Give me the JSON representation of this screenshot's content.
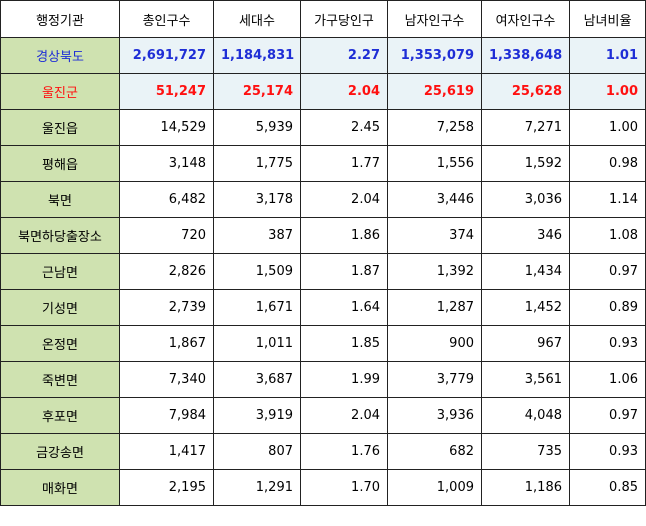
{
  "headers": [
    "행정기관",
    "총인구수",
    "세대수",
    "가구당인구",
    "남자인구수",
    "여자인구수",
    "남녀비율"
  ],
  "colors": {
    "province": "#1f2ed6",
    "county": "#ff1010",
    "name_bg": "#cfe2b0",
    "highlight_bg": "#eaf3f7"
  },
  "rows": [
    {
      "type": "province",
      "name": "경상북도",
      "total": "2,691,727",
      "households": "1,184,831",
      "per_household": "2.27",
      "male": "1,353,079",
      "female": "1,338,648",
      "ratio": "1.01"
    },
    {
      "type": "county",
      "name": "울진군",
      "total": "51,247",
      "households": "25,174",
      "per_household": "2.04",
      "male": "25,619",
      "female": "25,628",
      "ratio": "1.00"
    },
    {
      "type": "plain",
      "name": "울진읍",
      "total": "14,529",
      "households": "5,939",
      "per_household": "2.45",
      "male": "7,258",
      "female": "7,271",
      "ratio": "1.00"
    },
    {
      "type": "plain",
      "name": "평해읍",
      "total": "3,148",
      "households": "1,775",
      "per_household": "1.77",
      "male": "1,556",
      "female": "1,592",
      "ratio": "0.98"
    },
    {
      "type": "plain",
      "name": "북면",
      "total": "6,482",
      "households": "3,178",
      "per_household": "2.04",
      "male": "3,446",
      "female": "3,036",
      "ratio": "1.14"
    },
    {
      "type": "plain",
      "name": "북면하당출장소",
      "total": "720",
      "households": "387",
      "per_household": "1.86",
      "male": "374",
      "female": "346",
      "ratio": "1.08"
    },
    {
      "type": "plain",
      "name": "근남면",
      "total": "2,826",
      "households": "1,509",
      "per_household": "1.87",
      "male": "1,392",
      "female": "1,434",
      "ratio": "0.97"
    },
    {
      "type": "plain",
      "name": "기성면",
      "total": "2,739",
      "households": "1,671",
      "per_household": "1.64",
      "male": "1,287",
      "female": "1,452",
      "ratio": "0.89"
    },
    {
      "type": "plain",
      "name": "온정면",
      "total": "1,867",
      "households": "1,011",
      "per_household": "1.85",
      "male": "900",
      "female": "967",
      "ratio": "0.93"
    },
    {
      "type": "plain",
      "name": "죽변면",
      "total": "7,340",
      "households": "3,687",
      "per_household": "1.99",
      "male": "3,779",
      "female": "3,561",
      "ratio": "1.06"
    },
    {
      "type": "plain",
      "name": "후포면",
      "total": "7,984",
      "households": "3,919",
      "per_household": "2.04",
      "male": "3,936",
      "female": "4,048",
      "ratio": "0.97"
    },
    {
      "type": "plain",
      "name": "금강송면",
      "total": "1,417",
      "households": "807",
      "per_household": "1.76",
      "male": "682",
      "female": "735",
      "ratio": "0.93"
    },
    {
      "type": "plain",
      "name": "매화면",
      "total": "2,195",
      "households": "1,291",
      "per_household": "1.70",
      "male": "1,009",
      "female": "1,186",
      "ratio": "0.85"
    }
  ]
}
